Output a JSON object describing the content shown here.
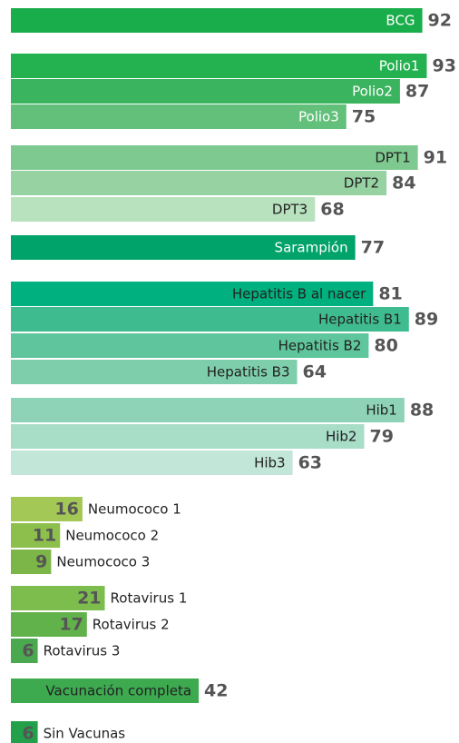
{
  "chart_data": {
    "type": "bar",
    "categories": [
      "BCG",
      "Polio1",
      "Polio2",
      "Polio3",
      "DPT1",
      "DPT2",
      "DPT3",
      "Sarampión",
      "Hepatitis B al nacer",
      "Hepatitis B1",
      "Hepatitis B2",
      "Hepatitis B3",
      "Hib1",
      "Hib2",
      "Hib3",
      "Neumococo 1",
      "Neumococo 2",
      "Neumococo 3",
      "Rotavirus 1",
      "Rotavirus 2",
      "Rotavirus 3",
      "Vacunación completa",
      "Sin Vacunas"
    ],
    "values": [
      92,
      93,
      87,
      75,
      91,
      84,
      68,
      77,
      81,
      89,
      80,
      64,
      88,
      79,
      63,
      16,
      11,
      9,
      21,
      17,
      6,
      42,
      6
    ],
    "colors": [
      "#1aad4b",
      "#23b24f",
      "#3ab45e",
      "#62c07a",
      "#7ec98f",
      "#97d3a2",
      "#b7e2bd",
      "#00a36a",
      "#00b07e",
      "#3fbc8f",
      "#5ec59c",
      "#7ecdab",
      "#8ed3b8",
      "#a8ddc8",
      "#c2e6d8",
      "#a4c855",
      "#8dbf4d",
      "#7cb648",
      "#7dbd4e",
      "#62b24c",
      "#4aa84e",
      "#3daa50",
      "#22a04a"
    ]
  }
}
